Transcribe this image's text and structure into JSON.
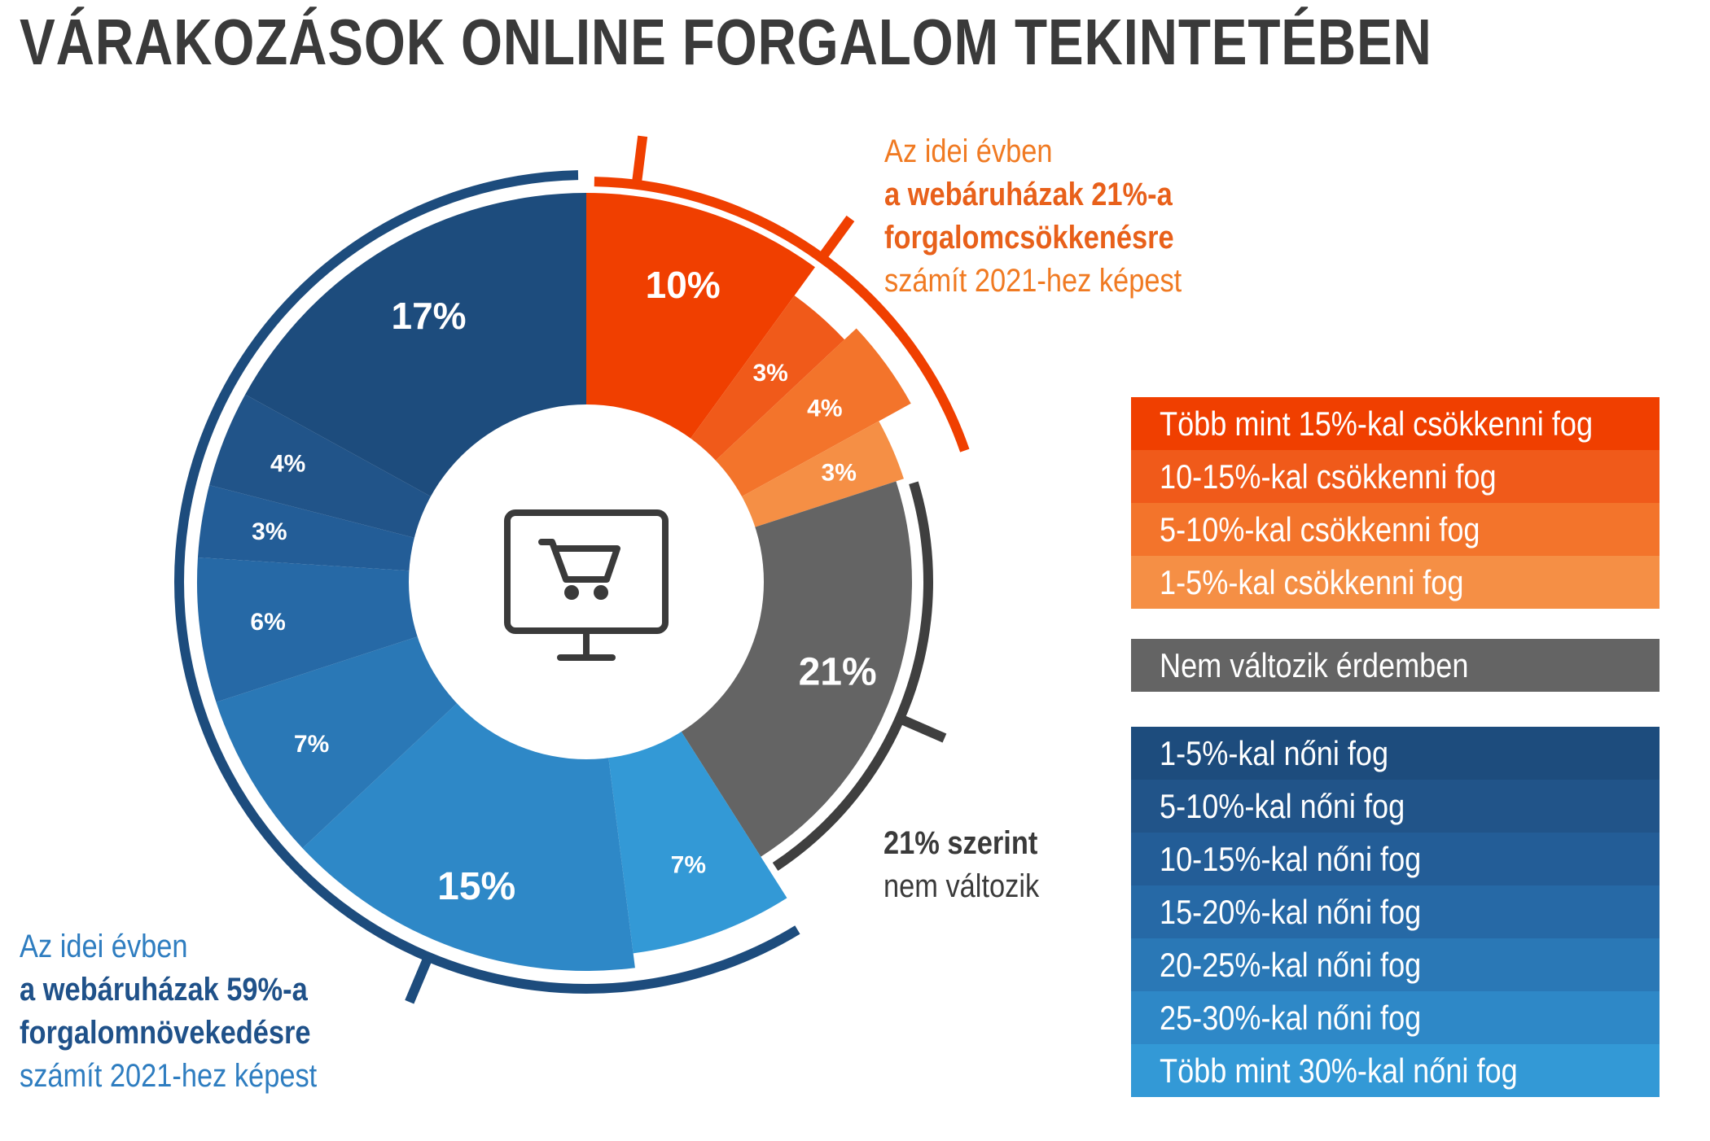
{
  "title": "VÁRAKOZÁSOK ONLINE FORGALOM TEKINTETÉBEN",
  "callouts": {
    "decrease": {
      "line1": "Az idei évben",
      "bold1": "a webáruházak 21%-a",
      "bold2": "forgalomcsökkenésre",
      "line2": "számít 2021-hez képest"
    },
    "increase": {
      "line1": "Az idei évben",
      "bold1": "a webáruházak 59%-a",
      "bold2": "forgalomnövekedésre",
      "line2": "számít 2021-hez képest"
    },
    "neutral": {
      "bold1": "21% szerint",
      "line1": "nem változik"
    }
  },
  "center_icon": "computer-shopping-cart-icon",
  "chart_data": {
    "type": "pie",
    "donut": true,
    "unit": "%",
    "slices": [
      {
        "label": "Több mint 15%-kal csökkenni fog",
        "value": 10,
        "display": "10%",
        "color": "#f03f00",
        "group": "decrease"
      },
      {
        "label": "10-15%-kal csökkenni fog",
        "value": 3,
        "display": "3%",
        "color": "#f05a1a",
        "group": "decrease"
      },
      {
        "label": "5-10%-kal csökkenni fog",
        "value": 4,
        "display": "4%",
        "color": "#f3742b",
        "group": "decrease"
      },
      {
        "label": "1-5%-kal csökkenni fog",
        "value": 3,
        "display": "3%",
        "color": "#f58f45",
        "group": "decrease"
      },
      {
        "label": "Nem változik érdemben",
        "value": 21,
        "display": "21%",
        "color": "#646464",
        "group": "neutral"
      },
      {
        "label": "Több mint 30%-kal nőni fog",
        "value": 7,
        "display": "7%",
        "color": "#3399d6",
        "group": "increase"
      },
      {
        "label": "25-30%-kal nőni fog",
        "value": 15,
        "display": "15%",
        "color": "#2e88c7",
        "group": "increase"
      },
      {
        "label": "20-25%-kal nőni fog",
        "value": 7,
        "display": "7%",
        "color": "#2a78b6",
        "group": "increase"
      },
      {
        "label": "15-20%-kal nőni fog",
        "value": 6,
        "display": "6%",
        "color": "#2669a6",
        "group": "increase"
      },
      {
        "label": "10-15%-kal nőni fog",
        "value": 3,
        "display": "3%",
        "color": "#235d97",
        "group": "increase"
      },
      {
        "label": "5-10%-kal nőni fog",
        "value": 4,
        "display": "4%",
        "color": "#215489",
        "group": "increase"
      },
      {
        "label": "1-5%-kal nőni fog",
        "value": 17,
        "display": "17%",
        "color": "#1d4c7d",
        "group": "increase"
      }
    ],
    "group_totals": {
      "decrease": 21,
      "neutral": 21,
      "increase": 59
    },
    "group_colors": {
      "decrease": "#f03f00",
      "neutral": "#3f3f3f",
      "increase": "#1d4c7d"
    },
    "legend": {
      "decrease": [
        {
          "label": "Több mint 15%-kal csökkenni fog",
          "color": "#f03f00"
        },
        {
          "label": "10-15%-kal csökkenni fog",
          "color": "#f05a1a"
        },
        {
          "label": "5-10%-kal csökkenni fog",
          "color": "#f3742b"
        },
        {
          "label": "1-5%-kal csökkenni fog",
          "color": "#f58f45"
        }
      ],
      "neutral": [
        {
          "label": "Nem változik érdemben",
          "color": "#646464"
        }
      ],
      "increase": [
        {
          "label": "1-5%-kal nőni fog",
          "color": "#1d4c7d"
        },
        {
          "label": "5-10%-kal nőni fog",
          "color": "#215489"
        },
        {
          "label": "10-15%-kal nőni fog",
          "color": "#235d97"
        },
        {
          "label": "15-20%-kal nőni fog",
          "color": "#2669a6"
        },
        {
          "label": "20-25%-kal nőni fog",
          "color": "#2a78b6"
        },
        {
          "label": "25-30%-kal nőni fog",
          "color": "#2e88c7"
        },
        {
          "label": "Több mint 30%-kal nőni fog",
          "color": "#3399d6"
        }
      ]
    }
  }
}
